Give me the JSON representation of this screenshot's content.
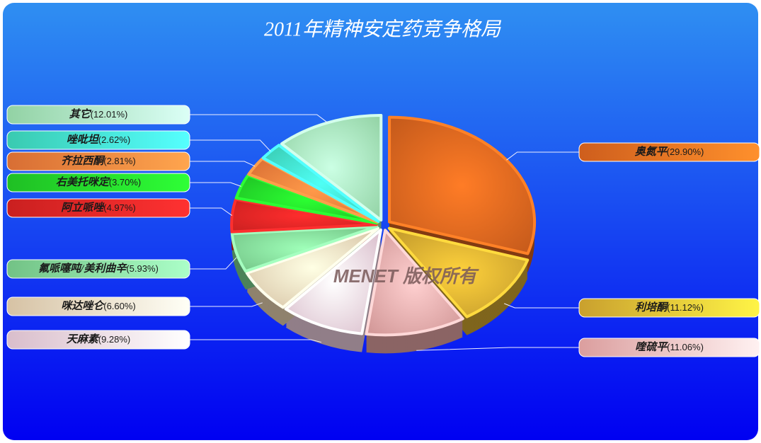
{
  "chart_data": {
    "type": "pie",
    "title": "2011年精神安定药竞争格局",
    "watermark": "MENET 版权所有",
    "categories": [
      "奥氮平",
      "利培酮",
      "喹硫平",
      "天麻素",
      "咪达唑仑",
      "氟哌噻吨/美利曲辛",
      "阿立哌唑",
      "右美托咪定",
      "齐拉西酮",
      "唑吡坦",
      "其它"
    ],
    "values": [
      29.9,
      11.12,
      11.06,
      9.28,
      6.6,
      5.93,
      4.97,
      3.7,
      2.81,
      2.62,
      12.01
    ],
    "value_labels": [
      "(29.90%)",
      "(11.12%)",
      "(11.06%)",
      "(9.28%)",
      "(6.60%)",
      "(5.93%)",
      "(4.97%)",
      "(3.70%)",
      "(2.81%)",
      "(2.62%)",
      "(12.01%)"
    ],
    "colors": [
      "#d9631e",
      "#d4a830",
      "#e7a6a6",
      "#f1d2e2",
      "#eed8b6",
      "#7fd894",
      "#e02424",
      "#22d428",
      "#f07a3a",
      "#3fe0c4",
      "#a2e9b6"
    ]
  }
}
